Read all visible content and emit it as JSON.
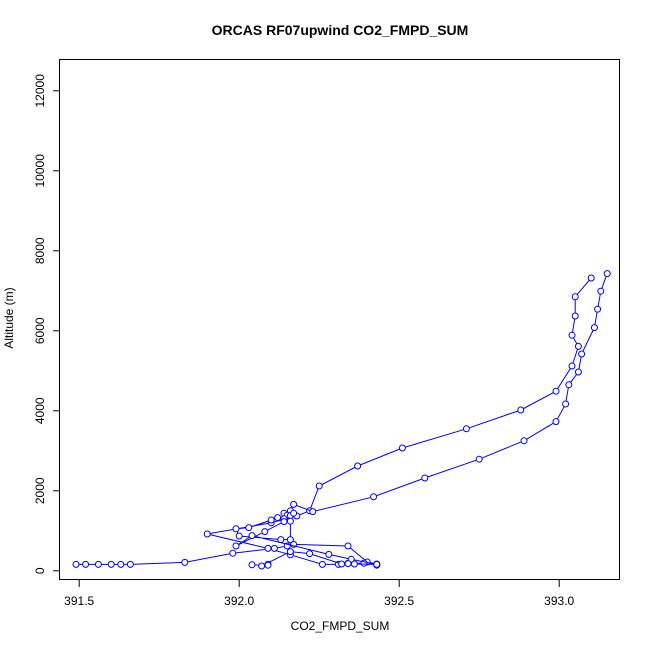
{
  "chart_data": {
    "type": "line",
    "title": "ORCAS RF07upwind CO2_FMPD_SUM",
    "xlabel": "CO2_FMPD_SUM",
    "ylabel": "Altitude (m)",
    "xlim": [
      391.44,
      393.19
    ],
    "ylim": [
      -230,
      12770
    ],
    "xticks": [
      391.5,
      392.0,
      392.5,
      393.0
    ],
    "xtick_labels": [
      "391.5",
      "392.0",
      "392.5",
      "393.0"
    ],
    "yticks": [
      0,
      2000,
      4000,
      6000,
      8000,
      10000,
      12000
    ],
    "ytick_labels": [
      "0",
      "2000",
      "4000",
      "6000",
      "8000",
      "10000",
      "12000"
    ],
    "grid": false,
    "marker": "open-circle",
    "color": "#0000ff",
    "series": [
      {
        "values": [
          {
            "x": 391.49,
            "y": 160
          },
          {
            "x": 391.52,
            "y": 160
          },
          {
            "x": 391.56,
            "y": 160
          },
          {
            "x": 391.6,
            "y": 160
          },
          {
            "x": 391.63,
            "y": 160
          },
          {
            "x": 391.66,
            "y": 160
          },
          {
            "x": 391.83,
            "y": 210
          },
          {
            "x": 391.98,
            "y": 440
          },
          {
            "x": 392.11,
            "y": 560
          },
          {
            "x": 392.15,
            "y": 620
          },
          {
            "x": 392.17,
            "y": 660
          },
          {
            "x": 392.34,
            "y": 620
          },
          {
            "x": 392.4,
            "y": 220
          },
          {
            "x": 392.43,
            "y": 170
          },
          {
            "x": 392.39,
            "y": 190
          },
          {
            "x": 392.34,
            "y": 190
          },
          {
            "x": 392.31,
            "y": 160
          },
          {
            "x": 392.26,
            "y": 160
          },
          {
            "x": 392.16,
            "y": 400
          },
          {
            "x": 392.09,
            "y": 560
          },
          {
            "x": 391.9,
            "y": 920
          },
          {
            "x": 392.1,
            "y": 1200
          },
          {
            "x": 392.18,
            "y": 1370
          },
          {
            "x": 392.22,
            "y": 1500
          },
          {
            "x": 392.25,
            "y": 2120
          },
          {
            "x": 392.37,
            "y": 2620
          },
          {
            "x": 392.51,
            "y": 3070
          },
          {
            "x": 392.71,
            "y": 3550
          },
          {
            "x": 392.88,
            "y": 4020
          },
          {
            "x": 392.99,
            "y": 4490
          },
          {
            "x": 393.04,
            "y": 5120
          },
          {
            "x": 393.06,
            "y": 5610
          },
          {
            "x": 393.04,
            "y": 5890
          },
          {
            "x": 393.05,
            "y": 6370
          },
          {
            "x": 393.05,
            "y": 6850
          },
          {
            "x": 393.1,
            "y": 7320
          }
        ]
      },
      {
        "values": [
          {
            "x": 393.15,
            "y": 7430
          },
          {
            "x": 393.13,
            "y": 6990
          },
          {
            "x": 393.12,
            "y": 6540
          },
          {
            "x": 393.11,
            "y": 6080
          },
          {
            "x": 393.07,
            "y": 5420
          },
          {
            "x": 393.06,
            "y": 4970
          },
          {
            "x": 393.03,
            "y": 4650
          },
          {
            "x": 393.02,
            "y": 4170
          },
          {
            "x": 392.99,
            "y": 3730
          },
          {
            "x": 392.89,
            "y": 3250
          },
          {
            "x": 392.75,
            "y": 2790
          },
          {
            "x": 392.58,
            "y": 2320
          },
          {
            "x": 392.42,
            "y": 1850
          },
          {
            "x": 392.23,
            "y": 1480
          },
          {
            "x": 392.17,
            "y": 1660
          },
          {
            "x": 392.16,
            "y": 1500
          },
          {
            "x": 392.14,
            "y": 1440
          },
          {
            "x": 392.15,
            "y": 1390
          },
          {
            "x": 392.16,
            "y": 1380
          },
          {
            "x": 392.17,
            "y": 1440
          },
          {
            "x": 392.14,
            "y": 1300
          },
          {
            "x": 392.12,
            "y": 1330
          },
          {
            "x": 392.1,
            "y": 1270
          },
          {
            "x": 392.03,
            "y": 1080
          },
          {
            "x": 391.99,
            "y": 1050
          },
          {
            "x": 392.0,
            "y": 870
          },
          {
            "x": 392.13,
            "y": 780
          },
          {
            "x": 392.16,
            "y": 780
          },
          {
            "x": 392.16,
            "y": 1240
          },
          {
            "x": 392.14,
            "y": 1230
          },
          {
            "x": 392.08,
            "y": 980
          },
          {
            "x": 391.99,
            "y": 620
          },
          {
            "x": 392.04,
            "y": 880
          },
          {
            "x": 392.28,
            "y": 410
          },
          {
            "x": 392.35,
            "y": 290
          },
          {
            "x": 392.43,
            "y": 160
          },
          {
            "x": 392.43,
            "y": 140
          },
          {
            "x": 392.43,
            "y": 160
          },
          {
            "x": 392.36,
            "y": 170
          },
          {
            "x": 392.34,
            "y": 180
          },
          {
            "x": 392.32,
            "y": 170
          },
          {
            "x": 392.22,
            "y": 430
          },
          {
            "x": 392.16,
            "y": 480
          },
          {
            "x": 392.07,
            "y": 120
          },
          {
            "x": 392.09,
            "y": 160
          },
          {
            "x": 392.09,
            "y": 140
          },
          {
            "x": 392.04,
            "y": 150
          }
        ]
      }
    ]
  }
}
